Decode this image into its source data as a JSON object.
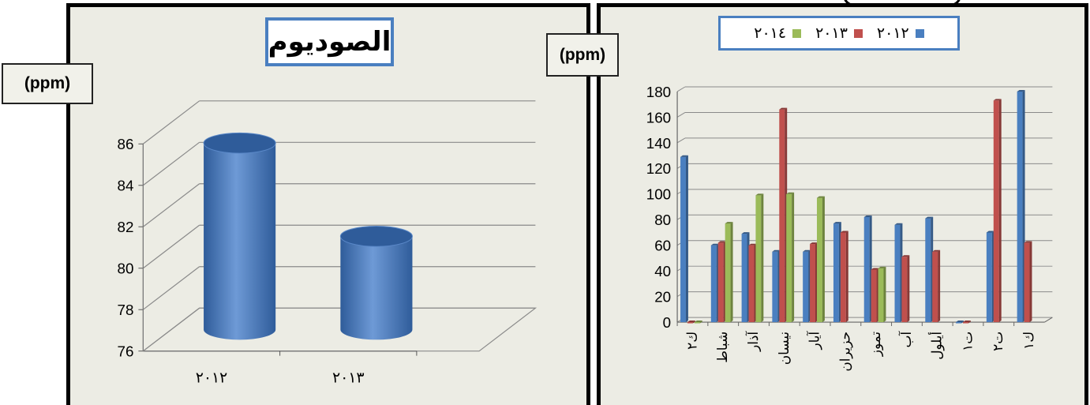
{
  "left_chart": {
    "title": "الصوديوم",
    "unit": "(ppm)",
    "y_ticks": [
      "76",
      "78",
      "80",
      "82",
      "84",
      "86"
    ],
    "colors": {
      "bar": "#4a7fc0",
      "bar_dark": "#2f5c9a",
      "bar_light": "#6e9ad6"
    }
  },
  "right_chart": {
    "unit": "(ppm)",
    "y_ticks": [
      "0",
      "20",
      "40",
      "60",
      "80",
      "100",
      "120",
      "140",
      "160",
      "180"
    ],
    "legend": [
      {
        "label": "٢٠١٢",
        "color": "#4a7fc0"
      },
      {
        "label": "٢٠١٣",
        "color": "#c0504d"
      },
      {
        "label": "٢٠١٤",
        "color": "#9bbb59"
      }
    ]
  },
  "chart_data": [
    {
      "type": "bar",
      "title": "الصوديوم",
      "ylabel": "(ppm)",
      "categories": [
        "٢٠١٢",
        "٢٠١٣"
      ],
      "values": [
        85,
        80.5
      ],
      "ylim": [
        76,
        86
      ],
      "grid": true,
      "style": "3d-cylinder"
    },
    {
      "type": "bar",
      "ylabel": "(ppm)",
      "categories": [
        "ك٢",
        "شباط",
        "آذار",
        "نيسان",
        "آيار",
        "حزيران",
        "تموز",
        "آب",
        "أيلول",
        "ت١",
        "ت٢",
        "ك١"
      ],
      "series": [
        {
          "name": "٢٠١٢",
          "values": [
            129,
            60,
            69,
            55,
            55,
            77,
            82,
            76,
            81,
            0,
            70,
            180
          ]
        },
        {
          "name": "٢٠١٣",
          "values": [
            0,
            62,
            60,
            166,
            61,
            70,
            41,
            51,
            55,
            0,
            173,
            62
          ]
        },
        {
          "name": "٢٠١٤",
          "values": [
            0,
            77,
            99,
            100,
            97,
            null,
            42,
            null,
            null,
            null,
            null,
            null
          ]
        }
      ],
      "ylim": [
        0,
        180
      ],
      "grid": true,
      "legend_position": "top"
    }
  ]
}
